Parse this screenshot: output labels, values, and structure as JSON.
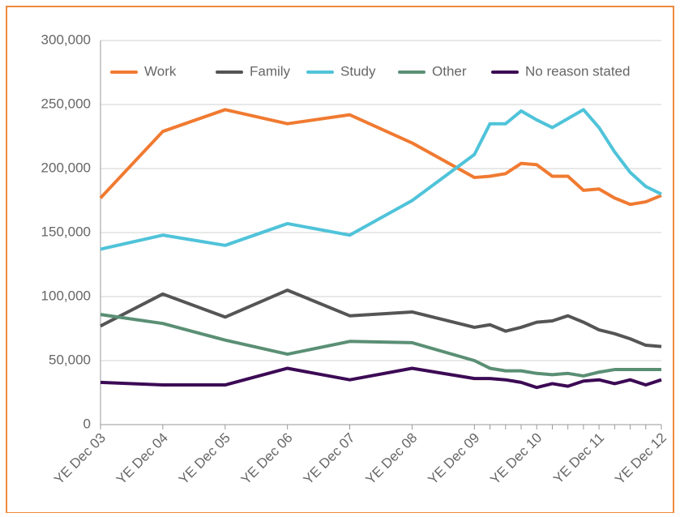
{
  "chart_data": {
    "type": "line",
    "categories": [
      "YE Dec 03",
      "YE Dec 04",
      "YE Dec 05",
      "YE Dec 06",
      "YE Dec 07",
      "YE Dec 08",
      "YE Dec 09",
      null,
      null,
      null,
      "YE Dec 10",
      null,
      null,
      null,
      "YE Dec 11",
      null,
      null,
      null,
      "YE Dec 12"
    ],
    "series": [
      {
        "name": "Work",
        "color": "#f07a31",
        "values": [
          177,
          229,
          246,
          235,
          242,
          220,
          193,
          194,
          196,
          204,
          203,
          194,
          194,
          183,
          184,
          177,
          172,
          174,
          179
        ]
      },
      {
        "name": "Family",
        "color": "#555555",
        "values": [
          77,
          102,
          84,
          105,
          85,
          88,
          76,
          78,
          73,
          76,
          80,
          81,
          85,
          80,
          74,
          71,
          67,
          62,
          61
        ]
      },
      {
        "name": "Study",
        "color": "#4fc3d9",
        "values": [
          137,
          148,
          140,
          157,
          148,
          175,
          211,
          235,
          235,
          245,
          238,
          232,
          239,
          246,
          232,
          213,
          197,
          186,
          180
        ]
      },
      {
        "name": "Other",
        "color": "#5a8f74",
        "values": [
          86,
          79,
          66,
          55,
          65,
          64,
          50,
          44,
          42,
          42,
          40,
          39,
          40,
          38,
          41,
          43,
          43,
          43,
          43
        ]
      },
      {
        "name": "No reason stated",
        "color": "#3c0a55",
        "values": [
          33,
          31,
          31,
          44,
          35,
          44,
          36,
          36,
          35,
          33,
          29,
          32,
          30,
          34,
          35,
          32,
          35,
          31,
          35
        ]
      }
    ],
    "ylim": [
      0,
      300
    ],
    "yticks": [
      {
        "value": 0,
        "label": "0"
      },
      {
        "value": 50,
        "label": "50,000"
      },
      {
        "value": 100,
        "label": "100,000"
      },
      {
        "value": 150,
        "label": "150,000"
      },
      {
        "value": 200,
        "label": "200,000"
      },
      {
        "value": 250,
        "label": "250,000"
      },
      {
        "value": 300,
        "label": "300,000"
      }
    ],
    "grid": true,
    "legend": "top"
  }
}
